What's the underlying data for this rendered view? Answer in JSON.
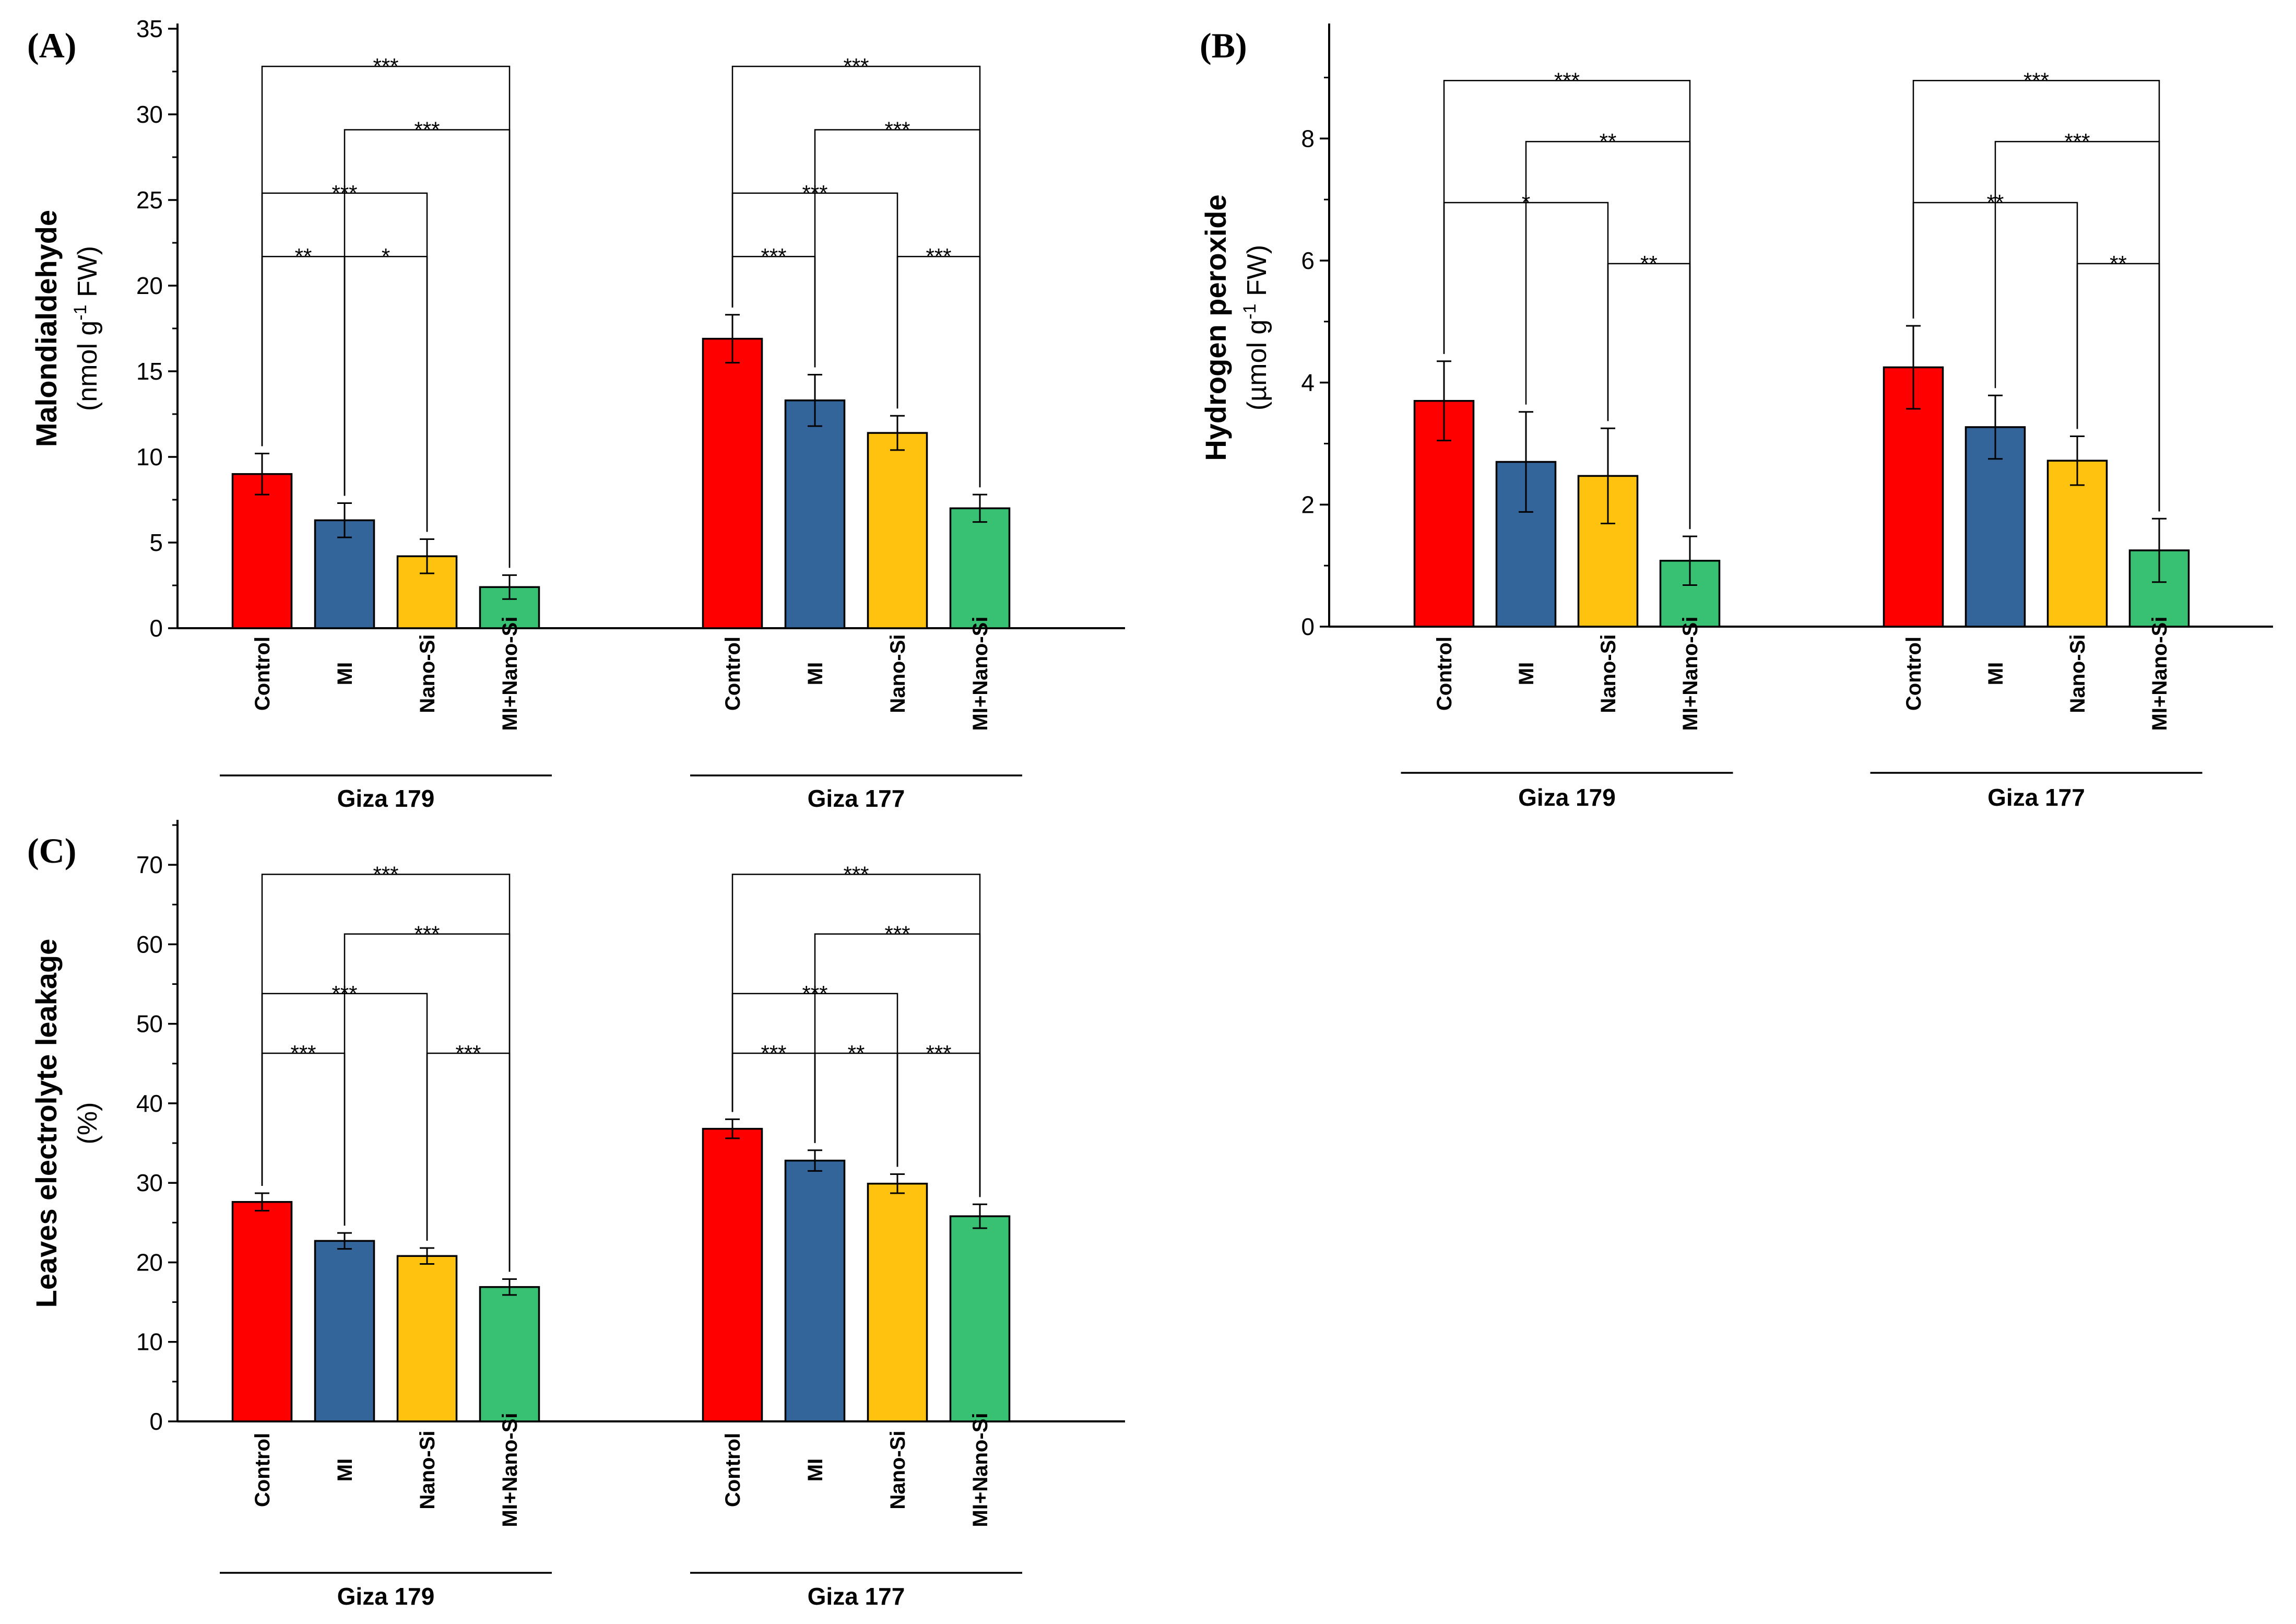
{
  "chart_data": [
    {
      "panel": "(A)",
      "type": "bar",
      "ylabel": "Malondialdehyde",
      "yunit": {
        "pre": "(nmol g",
        "sup": "-1",
        "post": " FW)"
      },
      "ylim": [
        0,
        35
      ],
      "yticks": [
        0,
        5,
        10,
        15,
        20,
        25,
        30,
        35
      ],
      "groups": [
        {
          "name": "Giza 179",
          "categories": [
            "Control",
            "MI",
            "Nano-Si",
            "MI+Nano-Si"
          ],
          "values": [
            9.0,
            6.3,
            4.2,
            2.4
          ],
          "errors": [
            1.2,
            1.0,
            1.0,
            0.7
          ],
          "brackets": [
            {
              "from": 0,
              "to": 3,
              "y": 32.8,
              "label": "***"
            },
            {
              "from": 1,
              "to": 3,
              "y": 29.1,
              "label": "***"
            },
            {
              "from": 0,
              "to": 2,
              "y": 25.4,
              "label": "***"
            },
            {
              "from": 0,
              "to": 1,
              "y": 21.7,
              "label": "**"
            },
            {
              "from": 1,
              "to": 2,
              "y": 21.7,
              "label": "*"
            }
          ]
        },
        {
          "name": "Giza 177",
          "categories": [
            "Control",
            "MI",
            "Nano-Si",
            "MI+Nano-Si"
          ],
          "values": [
            16.9,
            13.3,
            11.4,
            7.0
          ],
          "errors": [
            1.4,
            1.5,
            1.0,
            0.8
          ],
          "brackets": [
            {
              "from": 0,
              "to": 3,
              "y": 32.8,
              "label": "***"
            },
            {
              "from": 1,
              "to": 3,
              "y": 29.1,
              "label": "***"
            },
            {
              "from": 0,
              "to": 2,
              "y": 25.4,
              "label": "***"
            },
            {
              "from": 0,
              "to": 1,
              "y": 21.7,
              "label": "***"
            },
            {
              "from": 2,
              "to": 3,
              "y": 21.7,
              "label": "***"
            }
          ]
        }
      ]
    },
    {
      "panel": "(B)",
      "type": "bar",
      "ylabel": "Hydrogen peroxide",
      "yunit": {
        "pre": "(µmol g",
        "sup": "-1",
        "post": " FW)"
      },
      "ylim": [
        0,
        9.8
      ],
      "yticks": [
        0,
        2,
        4,
        6,
        8
      ],
      "groups": [
        {
          "name": "Giza 179",
          "categories": [
            "Control",
            "MI",
            "Nano-Si",
            "MI+Nano-Si"
          ],
          "values": [
            3.7,
            2.7,
            2.47,
            1.08
          ],
          "errors": [
            0.65,
            0.82,
            0.78,
            0.4
          ],
          "brackets": [
            {
              "from": 0,
              "to": 3,
              "y": 8.95,
              "label": "***"
            },
            {
              "from": 1,
              "to": 3,
              "y": 7.95,
              "label": "**"
            },
            {
              "from": 0,
              "to": 2,
              "y": 6.95,
              "label": "*"
            },
            {
              "from": 2,
              "to": 3,
              "y": 5.95,
              "label": "**"
            }
          ]
        },
        {
          "name": "Giza 177",
          "categories": [
            "Control",
            "MI",
            "Nano-Si",
            "MI+Nano-Si"
          ],
          "values": [
            4.25,
            3.27,
            2.72,
            1.25
          ],
          "errors": [
            0.68,
            0.52,
            0.4,
            0.52
          ],
          "brackets": [
            {
              "from": 0,
              "to": 3,
              "y": 8.95,
              "label": "***"
            },
            {
              "from": 1,
              "to": 3,
              "y": 7.95,
              "label": "***"
            },
            {
              "from": 0,
              "to": 2,
              "y": 6.95,
              "label": "**"
            },
            {
              "from": 2,
              "to": 3,
              "y": 5.95,
              "label": "**"
            }
          ]
        }
      ]
    },
    {
      "panel": "(C)",
      "type": "bar",
      "ylabel": "Leaves electrolyte leakage",
      "yunit": {
        "pre": "(%)",
        "sup": "",
        "post": ""
      },
      "ylim": [
        0,
        75
      ],
      "yticks": [
        0,
        10,
        20,
        30,
        40,
        50,
        60,
        70
      ],
      "groups": [
        {
          "name": "Giza 179",
          "categories": [
            "Control",
            "MI",
            "Nano-Si",
            "MI+Nano-Si"
          ],
          "values": [
            27.6,
            22.7,
            20.8,
            16.9
          ],
          "errors": [
            1.1,
            1.0,
            1.0,
            1.0
          ],
          "brackets": [
            {
              "from": 0,
              "to": 3,
              "y": 68.8,
              "label": "***"
            },
            {
              "from": 1,
              "to": 3,
              "y": 61.3,
              "label": "***"
            },
            {
              "from": 0,
              "to": 2,
              "y": 53.8,
              "label": "***"
            },
            {
              "from": 0,
              "to": 1,
              "y": 46.3,
              "label": "***"
            },
            {
              "from": 2,
              "to": 3,
              "y": 46.3,
              "label": "***"
            }
          ]
        },
        {
          "name": "Giza 177",
          "categories": [
            "Control",
            "MI",
            "Nano-Si",
            "MI+Nano-Si"
          ],
          "values": [
            36.8,
            32.8,
            29.9,
            25.8
          ],
          "errors": [
            1.2,
            1.3,
            1.2,
            1.5
          ],
          "brackets": [
            {
              "from": 0,
              "to": 3,
              "y": 68.8,
              "label": "***"
            },
            {
              "from": 1,
              "to": 3,
              "y": 61.3,
              "label": "***"
            },
            {
              "from": 0,
              "to": 2,
              "y": 53.8,
              "label": "***"
            },
            {
              "from": 0,
              "to": 1,
              "y": 46.3,
              "label": "***"
            },
            {
              "from": 1,
              "to": 2,
              "y": 46.3,
              "label": "**"
            },
            {
              "from": 2,
              "to": 3,
              "y": 46.3,
              "label": "***"
            }
          ]
        }
      ]
    }
  ],
  "series_colors": [
    "#ff0000",
    "#33659b",
    "#ffc30f",
    "#38c172"
  ]
}
